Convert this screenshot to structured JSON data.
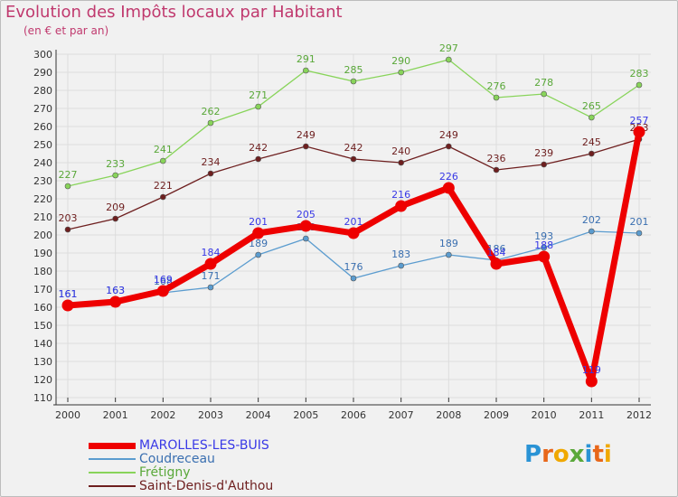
{
  "title": "Evolution des Impôts locaux par Habitant",
  "subtitle": "(en € et par an)",
  "logo": {
    "letters": [
      "P",
      "r",
      "o",
      "x",
      "i",
      "t",
      "i"
    ]
  },
  "colors": {
    "title": "#c0396e",
    "axis_text": "#333333",
    "grid": "#dddddd",
    "axis": "#333333",
    "logo": [
      "#2a93d5",
      "#e8671a",
      "#f0a800",
      "#5aa83a",
      "#2a93d5",
      "#e8671a",
      "#f0a800"
    ]
  },
  "chart_data": {
    "type": "line",
    "title": "Evolution des Impôts locaux par Habitant",
    "subtitle": "(en € et par an)",
    "xlabel": "",
    "ylabel": "",
    "categories": [
      "2000",
      "2001",
      "2002",
      "2003",
      "2004",
      "2005",
      "2006",
      "2007",
      "2008",
      "2009",
      "2010",
      "2011",
      "2012"
    ],
    "ylim": [
      110,
      300
    ],
    "yticks": [
      110,
      120,
      130,
      140,
      150,
      160,
      170,
      180,
      190,
      200,
      210,
      220,
      230,
      240,
      250,
      260,
      270,
      280,
      290,
      300
    ],
    "grid": true,
    "legend_position": "bottom-left",
    "series": [
      {
        "name": "MAROLLES-LES-BUIS",
        "values": [
          161,
          163,
          169,
          184,
          201,
          205,
          201,
          216,
          226,
          184,
          188,
          119,
          257
        ],
        "color": "#ee0000",
        "label_color": "#3939e6",
        "emphasis": true
      },
      {
        "name": "Coudreceau",
        "values": [
          161,
          163,
          168,
          171,
          189,
          198,
          176,
          183,
          189,
          186,
          193,
          202,
          201
        ],
        "color": "#5b9ccf",
        "label_color": "#3a6fb0",
        "emphasis": false
      },
      {
        "name": "Frétigny",
        "values": [
          227,
          233,
          241,
          262,
          271,
          291,
          285,
          290,
          297,
          276,
          278,
          265,
          283
        ],
        "color": "#88d45a",
        "label_color": "#5aa83a",
        "emphasis": false
      },
      {
        "name": "Saint-Denis-d'Authou",
        "values": [
          203,
          209,
          221,
          234,
          242,
          249,
          242,
          240,
          249,
          236,
          239,
          245,
          253
        ],
        "color": "#6e1f1f",
        "label_color": "#6e1f1f",
        "emphasis": false
      }
    ]
  }
}
